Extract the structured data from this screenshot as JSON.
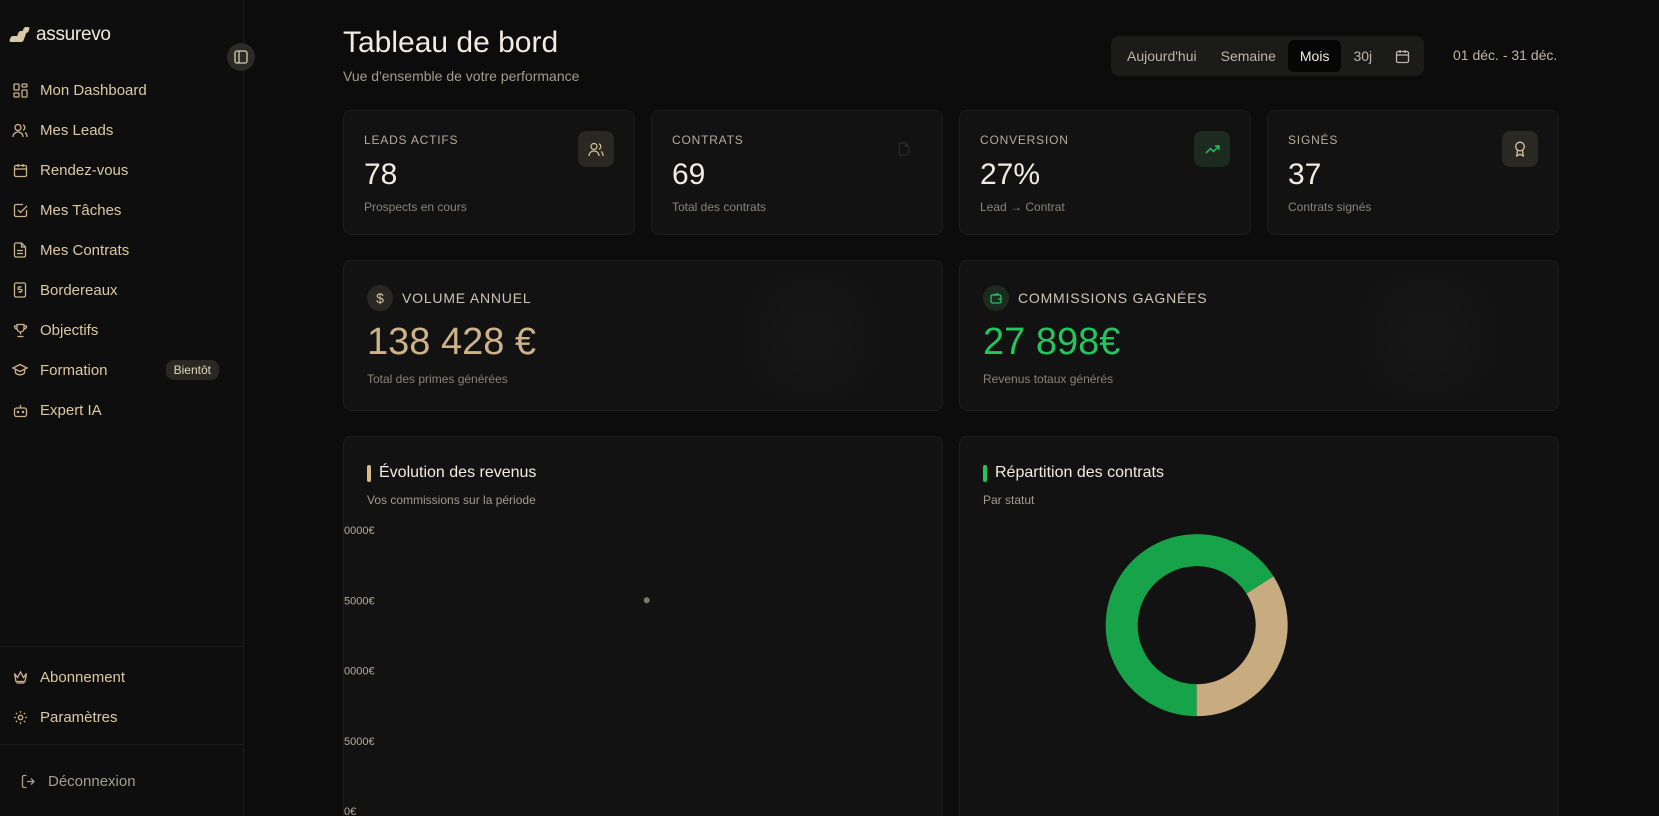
{
  "app": {
    "logo_text": "assurevo"
  },
  "sidebar": {
    "items": [
      {
        "label": "Mon Dashboard",
        "icon": "dashboard-icon"
      },
      {
        "label": "Mes Leads",
        "icon": "users-icon"
      },
      {
        "label": "Rendez-vous",
        "icon": "calendar-icon"
      },
      {
        "label": "Mes Tâches",
        "icon": "checkbox-icon"
      },
      {
        "label": "Mes Contrats",
        "icon": "document-icon"
      },
      {
        "label": "Bordereaux",
        "icon": "receipt-icon"
      },
      {
        "label": "Objectifs",
        "icon": "trophy-icon"
      },
      {
        "label": "Formation",
        "icon": "graduation-cap-icon",
        "badge": "Bientôt"
      },
      {
        "label": "Expert IA",
        "icon": "bot-icon"
      }
    ],
    "bottom_items": [
      {
        "label": "Abonnement",
        "icon": "crown-icon"
      },
      {
        "label": "Paramètres",
        "icon": "gear-icon"
      }
    ],
    "logout_label": "Déconnexion"
  },
  "header": {
    "title": "Tableau de bord",
    "subtitle": "Vue d'ensemble de votre performance",
    "ranges": [
      "Aujourd'hui",
      "Semaine",
      "Mois",
      "30j"
    ],
    "active_range": "Mois",
    "date_range": "01 déc. - 31 déc."
  },
  "kpis": [
    {
      "label": "LEADS ACTIFS",
      "value": "78",
      "sub": "Prospects en cours",
      "icon": "users-icon"
    },
    {
      "label": "CONTRATS",
      "value": "69",
      "sub": "Total des contrats",
      "icon": "document-icon"
    },
    {
      "label": "CONVERSION",
      "value": "27%",
      "sub": "Lead → Contrat",
      "icon": "trending-up-icon"
    },
    {
      "label": "SIGNÉS",
      "value": "37",
      "sub": "Contrats signés",
      "icon": "award-icon"
    }
  ],
  "volume": {
    "label": "VOLUME ANNUEL",
    "value": "138 428 €",
    "sub": "Total des primes générées",
    "icon": "dollar-icon",
    "color": "#cdb28a"
  },
  "commissions": {
    "label": "COMMISSIONS GAGNÉES",
    "value": "27 898€",
    "sub": "Revenus totaux générés",
    "icon": "wallet-icon",
    "color": "#22c55e"
  },
  "revenue_chart": {
    "title": "Évolution des revenus",
    "subtitle": "Vos commissions sur la période",
    "accent": "#dcb98a"
  },
  "contracts_chart": {
    "title": "Répartition des contrats",
    "subtitle": "Par statut",
    "accent": "#22c55e"
  },
  "chart_data": [
    {
      "type": "line",
      "title": "Évolution des revenus",
      "ytick_labels": [
        "0000€",
        "5000€",
        "0000€",
        "5000€",
        "0€"
      ],
      "points": [
        {
          "x_fraction": 0.52,
          "y": 15000
        }
      ],
      "ylim": [
        0,
        20000
      ],
      "grid": false
    },
    {
      "type": "pie",
      "title": "Répartition des contrats",
      "slices": [
        {
          "value": 0.66,
          "color": "#16a34a"
        },
        {
          "value": 0.34,
          "color": "#c8ab7e"
        }
      ]
    }
  ]
}
